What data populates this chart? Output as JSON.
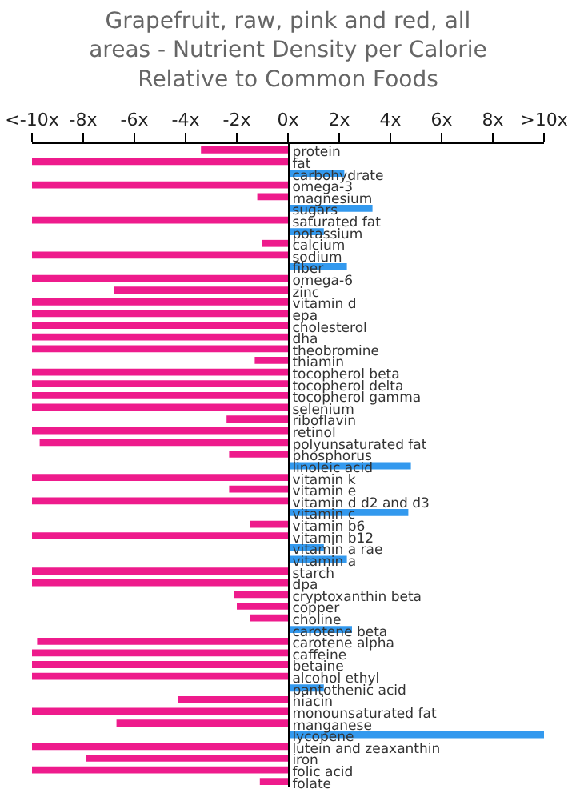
{
  "chart_data": {
    "type": "bar",
    "orientation": "horizontal",
    "title": "Grapefruit, raw, pink and red, all areas - Nutrient Density per Calorie Relative to Common Foods",
    "categories": [
      "protein",
      "fat",
      "carbohydrate",
      "omega-3",
      "magnesium",
      "sugars",
      "saturated fat",
      "potassium",
      "calcium",
      "sodium",
      "fiber",
      "omega-6",
      "zinc",
      "vitamin d",
      "epa",
      "cholesterol",
      "dha",
      "theobromine",
      "thiamin",
      "tocopherol beta",
      "tocopherol delta",
      "tocopherol gamma",
      "selenium",
      "riboflavin",
      "retinol",
      "polyunsaturated fat",
      "phosphorus",
      "linoleic acid",
      "vitamin k",
      "vitamin e",
      "vitamin d d2 and d3",
      "vitamin c",
      "vitamin b6",
      "vitamin b12",
      "vitamin a rae",
      "vitamin a",
      "starch",
      "dpa",
      "cryptoxanthin beta",
      "copper",
      "choline",
      "carotene beta",
      "carotene alpha",
      "caffeine",
      "betaine",
      "alcohol ethyl",
      "pantothenic acid",
      "niacin",
      "monounsaturated fat",
      "manganese",
      "lycopene",
      "lutein and zeaxanthin",
      "iron",
      "folic acid",
      "folate"
    ],
    "values": [
      -3.4,
      -10,
      2.2,
      -10,
      -1.2,
      3.3,
      -10,
      1.4,
      -1.0,
      -10,
      2.3,
      -10,
      -6.8,
      -10,
      -10,
      -10,
      -10,
      -10,
      -1.3,
      -10,
      -10,
      -10,
      -10,
      -2.4,
      -10,
      -9.7,
      -2.3,
      4.8,
      -10,
      -2.3,
      -10,
      4.7,
      -1.5,
      -10,
      1.4,
      2.3,
      -10,
      -10,
      -2.1,
      -2.0,
      -1.5,
      2.5,
      -9.8,
      -10,
      -10,
      -10,
      1.4,
      -4.3,
      -10,
      -6.7,
      10,
      -10,
      -7.9,
      -10,
      -1.1
    ],
    "colors": [
      "#ee1b8c",
      "#ee1b8c",
      "#3399ee",
      "#ee1b8c",
      "#ee1b8c",
      "#3399ee",
      "#ee1b8c",
      "#3399ee",
      "#ee1b8c",
      "#ee1b8c",
      "#3399ee",
      "#ee1b8c",
      "#ee1b8c",
      "#ee1b8c",
      "#ee1b8c",
      "#ee1b8c",
      "#ee1b8c",
      "#ee1b8c",
      "#ee1b8c",
      "#ee1b8c",
      "#ee1b8c",
      "#ee1b8c",
      "#ee1b8c",
      "#ee1b8c",
      "#ee1b8c",
      "#ee1b8c",
      "#ee1b8c",
      "#3399ee",
      "#ee1b8c",
      "#ee1b8c",
      "#ee1b8c",
      "#3399ee",
      "#ee1b8c",
      "#ee1b8c",
      "#3399ee",
      "#3399ee",
      "#ee1b8c",
      "#ee1b8c",
      "#ee1b8c",
      "#ee1b8c",
      "#ee1b8c",
      "#3399ee",
      "#ee1b8c",
      "#ee1b8c",
      "#ee1b8c",
      "#ee1b8c",
      "#3399ee",
      "#ee1b8c",
      "#ee1b8c",
      "#ee1b8c",
      "#3399ee",
      "#ee1b8c",
      "#ee1b8c",
      "#ee1b8c",
      "#ee1b8c"
    ],
    "xlim": [
      -10,
      10
    ],
    "xticks": [
      {
        "value": -10,
        "label": "<-10x"
      },
      {
        "value": -8,
        "label": "-8x"
      },
      {
        "value": -6,
        "label": "-6x"
      },
      {
        "value": -4,
        "label": "-4x"
      },
      {
        "value": -2,
        "label": "-2x"
      },
      {
        "value": 0,
        "label": "0x"
      },
      {
        "value": 2,
        "label": "2x"
      },
      {
        "value": 4,
        "label": "4x"
      },
      {
        "value": 6,
        "label": "6x"
      },
      {
        "value": 8,
        "label": "8x"
      },
      {
        "value": 10,
        "label": ">10x"
      }
    ],
    "grid": false
  }
}
